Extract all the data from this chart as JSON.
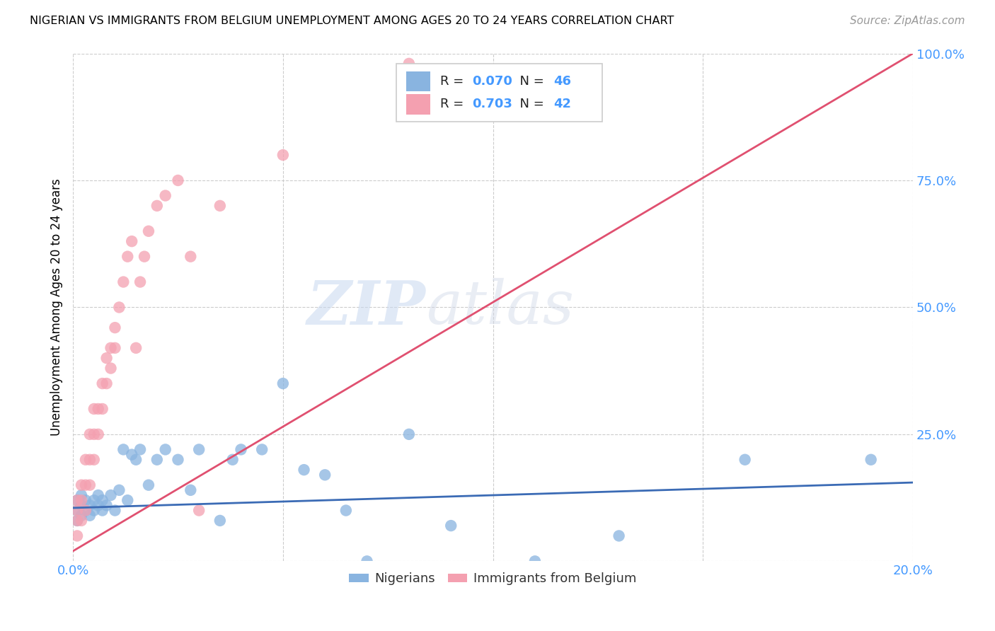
{
  "title": "NIGERIAN VS IMMIGRANTS FROM BELGIUM UNEMPLOYMENT AMONG AGES 20 TO 24 YEARS CORRELATION CHART",
  "source": "Source: ZipAtlas.com",
  "ylabel": "Unemployment Among Ages 20 to 24 years",
  "xlim": [
    0.0,
    0.2
  ],
  "ylim": [
    0.0,
    1.0
  ],
  "blue_color": "#89B4E0",
  "pink_color": "#F4A0B0",
  "blue_line_color": "#3B6BB5",
  "pink_line_color": "#E05070",
  "watermark_zip": "ZIP",
  "watermark_atlas": "atlas",
  "legend_R_blue": "0.070",
  "legend_N_blue": "46",
  "legend_R_pink": "0.703",
  "legend_N_pink": "42",
  "legend_label_blue": "Nigerians",
  "legend_label_pink": "Immigrants from Belgium",
  "blue_R": 0.07,
  "blue_N": 46,
  "pink_R": 0.703,
  "pink_N": 42,
  "nigerians_x": [
    0.001,
    0.001,
    0.001,
    0.002,
    0.002,
    0.002,
    0.003,
    0.003,
    0.004,
    0.004,
    0.005,
    0.005,
    0.006,
    0.006,
    0.007,
    0.007,
    0.008,
    0.009,
    0.01,
    0.011,
    0.012,
    0.013,
    0.014,
    0.015,
    0.016,
    0.018,
    0.02,
    0.022,
    0.025,
    0.028,
    0.03,
    0.035,
    0.038,
    0.04,
    0.045,
    0.05,
    0.055,
    0.06,
    0.065,
    0.07,
    0.08,
    0.09,
    0.11,
    0.13,
    0.16,
    0.19
  ],
  "nigerians_y": [
    0.08,
    0.1,
    0.12,
    0.09,
    0.11,
    0.13,
    0.1,
    0.12,
    0.09,
    0.11,
    0.1,
    0.12,
    0.11,
    0.13,
    0.1,
    0.12,
    0.11,
    0.13,
    0.1,
    0.14,
    0.22,
    0.12,
    0.21,
    0.2,
    0.22,
    0.15,
    0.2,
    0.22,
    0.2,
    0.14,
    0.22,
    0.08,
    0.2,
    0.22,
    0.22,
    0.35,
    0.18,
    0.17,
    0.1,
    0.0,
    0.25,
    0.07,
    0.0,
    0.05,
    0.2,
    0.2
  ],
  "belgium_x": [
    0.001,
    0.001,
    0.001,
    0.001,
    0.002,
    0.002,
    0.002,
    0.003,
    0.003,
    0.003,
    0.004,
    0.004,
    0.004,
    0.005,
    0.005,
    0.005,
    0.006,
    0.006,
    0.007,
    0.007,
    0.008,
    0.008,
    0.009,
    0.009,
    0.01,
    0.01,
    0.011,
    0.012,
    0.013,
    0.014,
    0.015,
    0.016,
    0.017,
    0.018,
    0.02,
    0.022,
    0.025,
    0.028,
    0.03,
    0.035,
    0.05,
    0.08
  ],
  "belgium_y": [
    0.05,
    0.08,
    0.1,
    0.12,
    0.08,
    0.12,
    0.15,
    0.1,
    0.15,
    0.2,
    0.15,
    0.2,
    0.25,
    0.2,
    0.25,
    0.3,
    0.25,
    0.3,
    0.3,
    0.35,
    0.35,
    0.4,
    0.38,
    0.42,
    0.42,
    0.46,
    0.5,
    0.55,
    0.6,
    0.63,
    0.42,
    0.55,
    0.6,
    0.65,
    0.7,
    0.72,
    0.75,
    0.6,
    0.1,
    0.7,
    0.8,
    0.98
  ],
  "blue_line_x0": 0.0,
  "blue_line_y0": 0.105,
  "blue_line_x1": 0.2,
  "blue_line_y1": 0.155,
  "pink_line_x0": 0.0,
  "pink_line_y0": 0.02,
  "pink_line_x1": 0.2,
  "pink_line_y1": 1.0
}
